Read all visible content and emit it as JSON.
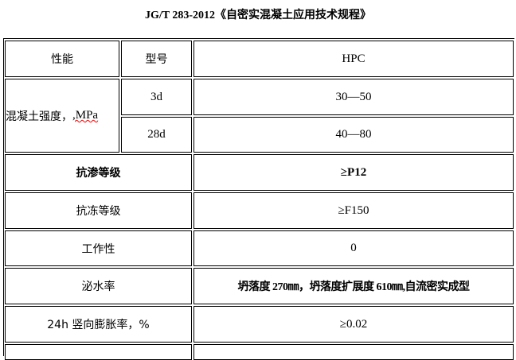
{
  "title": "JG/T 283-2012《自密实混凝土应用技术规程》",
  "header": {
    "property": "性能",
    "model": "型号",
    "value": "HPC"
  },
  "strength": {
    "label_prefix": "混凝土强度，",
    "label_unit": ",MPa",
    "rows": [
      {
        "age": "3d",
        "value": "30—50"
      },
      {
        "age": "28d",
        "value": "40—80"
      }
    ]
  },
  "rows": [
    {
      "property": "抗渗等级",
      "value": "≥P12",
      "bold": true
    },
    {
      "property": "抗冻等级",
      "value": "≥F150"
    },
    {
      "property": "工作性",
      "value": "0"
    },
    {
      "property": "泌水率",
      "value": "坍落度 270㎜，坍落度扩展度 610㎜,自流密实成型",
      "bold_value": true
    },
    {
      "property": "24h 竖向膨胀率，%",
      "value": "≥0.02"
    }
  ]
}
